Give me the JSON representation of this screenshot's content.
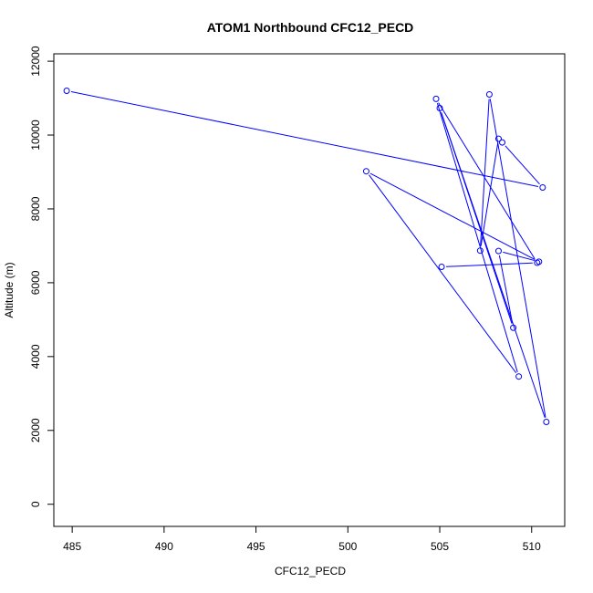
{
  "chart_data": {
    "type": "line",
    "title": "ATOM1 Northbound CFC12_PECD",
    "xlabel": "CFC12_PECD",
    "ylabel": "Altitude (m)",
    "xlim": [
      484.0,
      511.8
    ],
    "ylim": [
      -600,
      12200
    ],
    "xticks": [
      485,
      490,
      495,
      500,
      505,
      510
    ],
    "yticks": [
      0,
      2000,
      4000,
      6000,
      8000,
      10000,
      12000
    ],
    "series": [
      {
        "color": "#0000ff",
        "markers": "open-circle",
        "x": [
          484.7,
          510.6,
          508.4,
          508.2,
          507.2,
          507.7,
          510.8,
          505.0,
          509.0,
          508.2,
          510.4,
          501.0,
          509.3,
          504.8,
          510.3,
          505.1
        ],
        "y": [
          11200,
          8580,
          9800,
          9900,
          6870,
          11100,
          2230,
          10730,
          4780,
          6860,
          6570,
          9020,
          3460,
          10980,
          6540,
          6430
        ]
      }
    ]
  }
}
